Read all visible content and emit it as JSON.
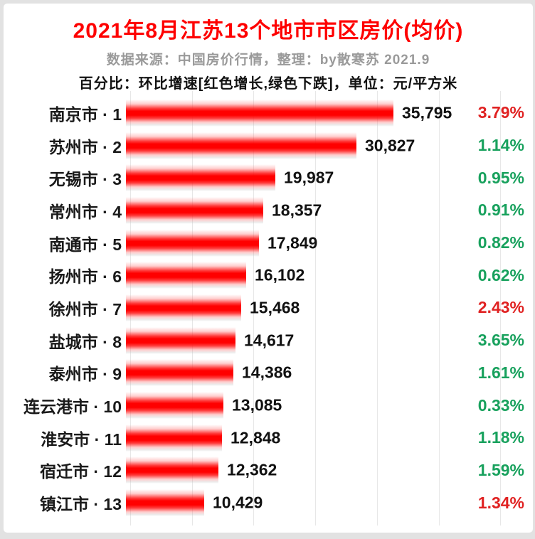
{
  "colors": {
    "title": "#fe0000",
    "subtitle_gray": "#9a9a9a",
    "bar_red": "#ff0000",
    "up": "#e02222",
    "down": "#18a15d",
    "gridline": "#e7e7e7"
  },
  "chart_data": {
    "type": "bar",
    "orientation": "horizontal",
    "title": "2021年8月江苏13个地市市区房价(均价)",
    "subtitle": "数据来源：中国房价行情，整理：by散寒苏 2021.9",
    "note": "百分比：环比增速[红色增长,绿色下跌]，单位：元/平方米",
    "unit": "元/平方米",
    "xlim": [
      0,
      40000
    ],
    "grid": true,
    "legend": "none",
    "categories": [
      "南京市 · 1",
      "苏州市 · 2",
      "无锡市 · 3",
      "常州市 · 4",
      "南通市 · 5",
      "扬州市 · 6",
      "徐州市 · 7",
      "盐城市 · 8",
      "泰州市 · 9",
      "连云港市 · 10",
      "淮安市 · 11",
      "宿迁市 · 12",
      "镇江市 · 13"
    ],
    "series": [
      {
        "name": "均价(元/平方米)",
        "values": [
          35795,
          30827,
          19987,
          18357,
          17849,
          16102,
          15468,
          14617,
          14386,
          13085,
          12848,
          12362,
          10429
        ]
      },
      {
        "name": "环比增速",
        "values": [
          "3.79%",
          "1.14%",
          "0.95%",
          "0.91%",
          "0.82%",
          "0.62%",
          "2.43%",
          "3.65%",
          "1.61%",
          "0.33%",
          "1.18%",
          "1.59%",
          "1.34%"
        ]
      }
    ],
    "rows": [
      {
        "label": "南京市 · 1",
        "value": 35795,
        "pct": "3.79%",
        "dir": "up"
      },
      {
        "label": "苏州市 · 2",
        "value": 30827,
        "pct": "1.14%",
        "dir": "down"
      },
      {
        "label": "无锡市 · 3",
        "value": 19987,
        "pct": "0.95%",
        "dir": "down"
      },
      {
        "label": "常州市 · 4",
        "value": 18357,
        "pct": "0.91%",
        "dir": "down"
      },
      {
        "label": "南通市 · 5",
        "value": 17849,
        "pct": "0.82%",
        "dir": "down"
      },
      {
        "label": "扬州市 · 6",
        "value": 16102,
        "pct": "0.62%",
        "dir": "down"
      },
      {
        "label": "徐州市 · 7",
        "value": 15468,
        "pct": "2.43%",
        "dir": "up"
      },
      {
        "label": "盐城市 · 8",
        "value": 14617,
        "pct": "3.65%",
        "dir": "down"
      },
      {
        "label": "泰州市 · 9",
        "value": 14386,
        "pct": "1.61%",
        "dir": "down"
      },
      {
        "label": "连云港市 · 10",
        "value": 13085,
        "pct": "0.33%",
        "dir": "down"
      },
      {
        "label": "淮安市 · 11",
        "value": 12848,
        "pct": "1.18%",
        "dir": "down"
      },
      {
        "label": "宿迁市 · 12",
        "value": 12362,
        "pct": "1.59%",
        "dir": "down"
      },
      {
        "label": "镇江市 · 13",
        "value": 10429,
        "pct": "1.34%",
        "dir": "up"
      }
    ]
  }
}
